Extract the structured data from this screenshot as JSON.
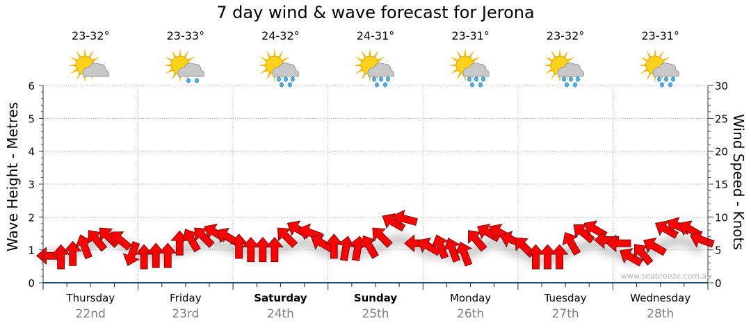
{
  "title": "7 day wind & wave forecast for Jerona",
  "days": [
    {
      "day": "Thursday",
      "date": "22nd",
      "temp": "23-32°",
      "icon": "sun-cloud-icon",
      "bold": false
    },
    {
      "day": "Friday",
      "date": "23rd",
      "temp": "23-33°",
      "icon": "sun-cloud-light-rain-icon",
      "bold": false
    },
    {
      "day": "Saturday",
      "date": "24th",
      "temp": "24-32°",
      "icon": "sun-cloud-rain-icon",
      "bold": true
    },
    {
      "day": "Sunday",
      "date": "25th",
      "temp": "24-31°",
      "icon": "sun-cloud-rain-icon",
      "bold": true
    },
    {
      "day": "Monday",
      "date": "26th",
      "temp": "23-31°",
      "icon": "sun-cloud-rain-icon",
      "bold": false
    },
    {
      "day": "Tuesday",
      "date": "27th",
      "temp": "23-32°",
      "icon": "sun-cloud-rain-icon",
      "bold": false
    },
    {
      "day": "Wednesday",
      "date": "28th",
      "temp": "23-31°",
      "icon": "sun-cloud-rain-icon",
      "bold": false
    }
  ],
  "watermark": "www.seabreeze.com.au",
  "colors": {
    "arrow": "#ff0000",
    "arrow_stroke": "#5a0000",
    "axis": "#1a4a7a",
    "grid": "#aaaaaa"
  },
  "chart_data": {
    "type": "line",
    "title": "7 day wind & wave forecast for Jerona",
    "ylabel_left": "Wave Height - Metres",
    "ylabel_right": "Wind Speed - Knots",
    "ylim_left": [
      0,
      6
    ],
    "ylim_right": [
      0,
      30
    ],
    "yticks_left": [
      "0",
      "1",
      "2",
      "3",
      "4",
      "5",
      "6"
    ],
    "yticks_right": [
      "0",
      "5",
      "10",
      "15",
      "20",
      "25",
      "30"
    ],
    "grid": true,
    "hours_per_point": 3,
    "wind_speed_knots": [
      4.1,
      3.9,
      4.4,
      5.5,
      6.5,
      7,
      6.5,
      4.4,
      3.9,
      4.1,
      4.1,
      6,
      6.5,
      7,
      7.6,
      7,
      5.5,
      5,
      5,
      5,
      7,
      8.1,
      7.6,
      6,
      5.5,
      5.2,
      5.2,
      5.5,
      7,
      9.2,
      9.7,
      6,
      5.5,
      5.5,
      5,
      4.4,
      6.5,
      7.6,
      7.6,
      6.5,
      5.5,
      3.9,
      3.9,
      3.9,
      6,
      7.6,
      8.1,
      6.5,
      6,
      3.9,
      4.4,
      5.5,
      8.1,
      8.6,
      8.1,
      6.5
    ],
    "wind_arrow_direction_deg": [
      270,
      0,
      0,
      340,
      320,
      315,
      310,
      200,
      0,
      0,
      0,
      0,
      330,
      315,
      300,
      300,
      0,
      0,
      0,
      0,
      315,
      300,
      290,
      300,
      0,
      10,
      10,
      330,
      315,
      300,
      285,
      270,
      300,
      340,
      340,
      340,
      320,
      300,
      300,
      290,
      315,
      0,
      0,
      0,
      330,
      310,
      300,
      270,
      270,
      300,
      320,
      300,
      300,
      295,
      300,
      290
    ],
    "wave_height_m": [
      0.9,
      0.8,
      0.9,
      1.1,
      1.2,
      1.3,
      1.2,
      1.0,
      0.8,
      0.8,
      0.9,
      1.0,
      1.1,
      1.2,
      1.2,
      1.1,
      1.0,
      0.9,
      0.9,
      1.0,
      1.1,
      1.2,
      1.2,
      1.0,
      0.9,
      0.9,
      0.9,
      1.0,
      1.1,
      1.3,
      1.3,
      1.1,
      0.9,
      0.9,
      0.8,
      0.8,
      1.0,
      1.2,
      1.2,
      1.0,
      0.9,
      0.7,
      0.7,
      0.8,
      1.0,
      1.1,
      1.2,
      1.0,
      0.9,
      0.7,
      0.8,
      1.0,
      1.2,
      1.3,
      1.2,
      1.0
    ]
  }
}
